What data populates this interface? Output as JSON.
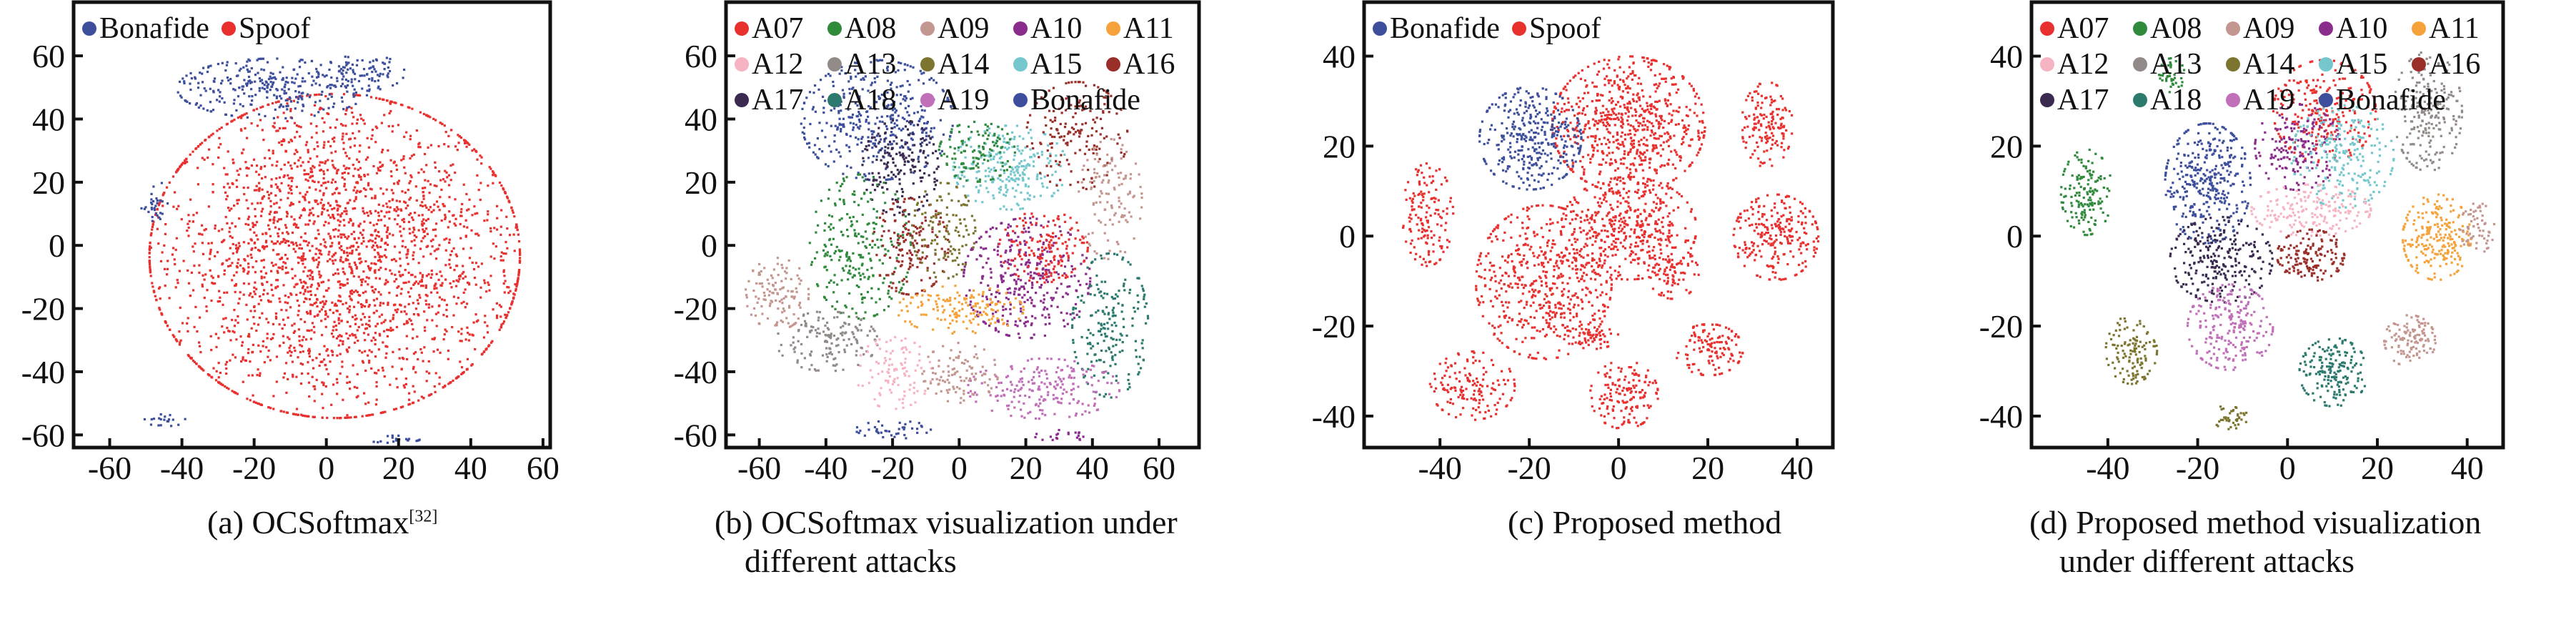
{
  "chart_data": [
    {
      "type": "scatter",
      "caption": "(a) OCSoftmax",
      "caption_ref": "[32]",
      "xlim": [
        -70,
        62
      ],
      "ylim": [
        -64,
        77
      ],
      "xticks": [
        -60,
        -40,
        -20,
        0,
        20,
        40,
        60
      ],
      "yticks": [
        60,
        40,
        20,
        0,
        -20,
        -40,
        -60
      ],
      "legend_columns": 2,
      "legend": [
        {
          "name": "Bonafide",
          "color": "#3d4f9c"
        },
        {
          "name": "Spoof",
          "color": "#e8312f"
        }
      ],
      "clusters": [
        {
          "series": "Spoof",
          "cx": 2,
          "cy": -3,
          "sx": 27,
          "sy": 27,
          "n": 2600
        },
        {
          "series": "Bonafide",
          "cx": -15,
          "cy": 50,
          "sx": 14,
          "sy": 5,
          "n": 300
        },
        {
          "series": "Bonafide",
          "cx": 10,
          "cy": 55,
          "sx": 6,
          "sy": 3,
          "n": 80
        },
        {
          "series": "Bonafide",
          "cx": -48,
          "cy": 15,
          "sx": 2,
          "sy": 4,
          "n": 30
        },
        {
          "series": "Bonafide",
          "cx": -45,
          "cy": -55,
          "sx": 3,
          "sy": 1,
          "n": 20
        },
        {
          "series": "Bonafide",
          "cx": 18,
          "cy": -61,
          "sx": 4,
          "sy": 0.6,
          "n": 20
        }
      ]
    },
    {
      "type": "scatter",
      "caption": "(b) OCSoftmax visualization under",
      "caption_line2": "different attacks",
      "xlim": [
        -70,
        72
      ],
      "ylim": [
        -64,
        77
      ],
      "xticks": [
        -60,
        -40,
        -20,
        0,
        20,
        40,
        60
      ],
      "yticks": [
        60,
        40,
        20,
        0,
        -20,
        -40,
        -60
      ],
      "legend_columns": 5,
      "legend": [
        {
          "name": "A07",
          "color": "#e8312f"
        },
        {
          "name": "A08",
          "color": "#2f8a3c"
        },
        {
          "name": "A09",
          "color": "#c49690"
        },
        {
          "name": "A10",
          "color": "#8a2c8c"
        },
        {
          "name": "A11",
          "color": "#f5a23a"
        },
        {
          "name": "A12",
          "color": "#f6b3c2"
        },
        {
          "name": "A13",
          "color": "#918a88"
        },
        {
          "name": "A14",
          "color": "#7c7530"
        },
        {
          "name": "A15",
          "color": "#74c8cd"
        },
        {
          "name": "A16",
          "color": "#9a2e28"
        },
        {
          "name": "A17",
          "color": "#3b2a4f"
        },
        {
          "name": "A18",
          "color": "#2c7a6e"
        },
        {
          "name": "A19",
          "color": "#c06fb8"
        },
        {
          "name": "Bonafide",
          "color": "#3d4f9c"
        }
      ],
      "clusters": [
        {
          "series": "Bonafide",
          "cx": -25,
          "cy": 40,
          "sx": 12,
          "sy": 10,
          "n": 400
        },
        {
          "series": "A17",
          "cx": -18,
          "cy": 25,
          "sx": 6,
          "sy": 8,
          "n": 180
        },
        {
          "series": "A08",
          "cx": -30,
          "cy": 0,
          "sx": 8,
          "sy": 12,
          "n": 250
        },
        {
          "series": "A09",
          "cx": -55,
          "cy": -15,
          "sx": 5,
          "sy": 6,
          "n": 120
        },
        {
          "series": "A13",
          "cx": -40,
          "cy": -30,
          "sx": 8,
          "sy": 5,
          "n": 150
        },
        {
          "series": "A16",
          "cx": -15,
          "cy": 0,
          "sx": 6,
          "sy": 8,
          "n": 160
        },
        {
          "series": "A15",
          "cx": 15,
          "cy": 25,
          "sx": 9,
          "sy": 7,
          "n": 250
        },
        {
          "series": "A08",
          "cx": 5,
          "cy": 30,
          "sx": 6,
          "sy": 5,
          "n": 120
        },
        {
          "series": "A16",
          "cx": 35,
          "cy": 35,
          "sx": 8,
          "sy": 9,
          "n": 170
        },
        {
          "series": "A09",
          "cx": 45,
          "cy": 15,
          "sx": 5,
          "sy": 10,
          "n": 120
        },
        {
          "series": "A10",
          "cx": 20,
          "cy": -10,
          "sx": 10,
          "sy": 10,
          "n": 350
        },
        {
          "series": "A07",
          "cx": 25,
          "cy": 0,
          "sx": 7,
          "sy": 6,
          "n": 150
        },
        {
          "series": "A11",
          "cx": 0,
          "cy": -20,
          "sx": 10,
          "sy": 4,
          "n": 150
        },
        {
          "series": "A18",
          "cx": 45,
          "cy": -25,
          "sx": 6,
          "sy": 12,
          "n": 200
        },
        {
          "series": "A19",
          "cx": 25,
          "cy": -45,
          "sx": 12,
          "sy": 5,
          "n": 200
        },
        {
          "series": "A12",
          "cx": -20,
          "cy": -40,
          "sx": 6,
          "sy": 6,
          "n": 100
        },
        {
          "series": "A14",
          "cx": -5,
          "cy": 5,
          "sx": 5,
          "sy": 8,
          "n": 120
        },
        {
          "series": "A09",
          "cx": 0,
          "cy": -40,
          "sx": 6,
          "sy": 5,
          "n": 100
        },
        {
          "series": "Bonafide",
          "cx": -20,
          "cy": -58,
          "sx": 6,
          "sy": 1.5,
          "n": 40
        },
        {
          "series": "A10",
          "cx": 30,
          "cy": -60,
          "sx": 4,
          "sy": 1,
          "n": 20
        }
      ]
    },
    {
      "type": "scatter",
      "caption": "(c) Proposed method",
      "xlim": [
        -57,
        48
      ],
      "ylim": [
        -47,
        52
      ],
      "xticks": [
        -40,
        -20,
        0,
        20,
        40
      ],
      "yticks": [
        40,
        20,
        0,
        -20,
        -40
      ],
      "legend_columns": 2,
      "legend": [
        {
          "name": "Bonafide",
          "color": "#3d4f9c"
        },
        {
          "name": "Spoof",
          "color": "#e8312f"
        }
      ],
      "clusters": [
        {
          "series": "Spoof",
          "cx": 2,
          "cy": 25,
          "sx": 9,
          "sy": 8,
          "n": 700
        },
        {
          "series": "Bonafide",
          "cx": -20,
          "cy": 22,
          "sx": 6,
          "sy": 6,
          "n": 350
        },
        {
          "series": "Spoof",
          "cx": -17,
          "cy": -10,
          "sx": 8,
          "sy": 9,
          "n": 550
        },
        {
          "series": "Spoof",
          "cx": 2,
          "cy": 2,
          "sx": 8,
          "sy": 6,
          "n": 450
        },
        {
          "series": "Spoof",
          "cx": 33,
          "cy": 25,
          "sx": 3,
          "sy": 5,
          "n": 150
        },
        {
          "series": "Spoof",
          "cx": 35,
          "cy": 0,
          "sx": 5,
          "sy": 5,
          "n": 250
        },
        {
          "series": "Spoof",
          "cx": -43,
          "cy": 5,
          "sx": 3,
          "sy": 6,
          "n": 150
        },
        {
          "series": "Spoof",
          "cx": -33,
          "cy": -33,
          "sx": 5,
          "sy": 4,
          "n": 150
        },
        {
          "series": "Spoof",
          "cx": 1,
          "cy": -35,
          "sx": 4,
          "sy": 4,
          "n": 150
        },
        {
          "series": "Spoof",
          "cx": 20,
          "cy": -25,
          "sx": 4,
          "sy": 3,
          "n": 130
        },
        {
          "series": "Spoof",
          "cx": 12,
          "cy": -8,
          "sx": 3,
          "sy": 3,
          "n": 80
        },
        {
          "series": "Spoof",
          "cx": -6,
          "cy": -22,
          "sx": 3,
          "sy": 1.5,
          "n": 50
        }
      ]
    },
    {
      "type": "scatter",
      "caption": "(d) Proposed method visualization",
      "caption_line2": "under different attacks",
      "xlim": [
        -57,
        48
      ],
      "ylim": [
        -47,
        52
      ],
      "xticks": [
        -40,
        -20,
        0,
        20,
        40
      ],
      "yticks": [
        40,
        20,
        0,
        -20,
        -40
      ],
      "legend_columns": 5,
      "legend": [
        {
          "name": "A07",
          "color": "#e8312f"
        },
        {
          "name": "A08",
          "color": "#2f8a3c"
        },
        {
          "name": "A09",
          "color": "#c49690"
        },
        {
          "name": "A10",
          "color": "#8a2c8c"
        },
        {
          "name": "A11",
          "color": "#f5a23a"
        },
        {
          "name": "A12",
          "color": "#f6b3c2"
        },
        {
          "name": "A13",
          "color": "#918a88"
        },
        {
          "name": "A14",
          "color": "#7c7530"
        },
        {
          "name": "A15",
          "color": "#74c8cd"
        },
        {
          "name": "A16",
          "color": "#9a2e28"
        },
        {
          "name": "A17",
          "color": "#3b2a4f"
        },
        {
          "name": "A18",
          "color": "#2c7a6e"
        },
        {
          "name": "A19",
          "color": "#c06fb8"
        },
        {
          "name": "Bonafide",
          "color": "#3d4f9c"
        }
      ],
      "clusters": [
        {
          "series": "A08",
          "cx": -45,
          "cy": 10,
          "sx": 3,
          "sy": 5,
          "n": 150
        },
        {
          "series": "A08",
          "cx": -26,
          "cy": 36,
          "sx": 1.5,
          "sy": 2,
          "n": 40
        },
        {
          "series": "Bonafide",
          "cx": -18,
          "cy": 12,
          "sx": 5,
          "sy": 7,
          "n": 350
        },
        {
          "series": "A17",
          "cx": -15,
          "cy": -5,
          "sx": 6,
          "sy": 5,
          "n": 250
        },
        {
          "series": "A19",
          "cx": -13,
          "cy": -20,
          "sx": 5,
          "sy": 5,
          "n": 220
        },
        {
          "series": "A14",
          "cx": -35,
          "cy": -25,
          "sx": 3,
          "sy": 4,
          "n": 120
        },
        {
          "series": "A14",
          "cx": -13,
          "cy": -40,
          "sx": 2,
          "sy": 1.5,
          "n": 40
        },
        {
          "series": "A07",
          "cx": 8,
          "cy": 28,
          "sx": 6,
          "sy": 6,
          "n": 250
        },
        {
          "series": "A10",
          "cx": 2,
          "cy": 20,
          "sx": 5,
          "sy": 5,
          "n": 180
        },
        {
          "series": "A15",
          "cx": 12,
          "cy": 18,
          "sx": 6,
          "sy": 6,
          "n": 220
        },
        {
          "series": "A12",
          "cx": 5,
          "cy": 6,
          "sx": 7,
          "sy": 3,
          "n": 180
        },
        {
          "series": "A16",
          "cx": 5,
          "cy": -4,
          "sx": 4,
          "sy": 3,
          "n": 150
        },
        {
          "series": "A18",
          "cx": 10,
          "cy": -30,
          "sx": 4,
          "sy": 4,
          "n": 180
        },
        {
          "series": "A09",
          "cx": 27,
          "cy": -23,
          "sx": 3,
          "sy": 3,
          "n": 120
        },
        {
          "series": "A11",
          "cx": 33,
          "cy": 0,
          "sx": 4,
          "sy": 5,
          "n": 220
        },
        {
          "series": "A13",
          "cx": 31,
          "cy": 28,
          "sx": 4,
          "sy": 7,
          "n": 220
        },
        {
          "series": "A09",
          "cx": 42,
          "cy": 2,
          "sx": 2,
          "sy": 3,
          "n": 60
        }
      ]
    }
  ]
}
